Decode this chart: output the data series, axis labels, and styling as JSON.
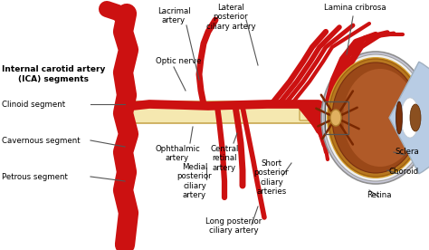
{
  "bg": "#ffffff",
  "red": "#cc1111",
  "dark_red": "#990000",
  "nerve_fill": "#f5e8b0",
  "nerve_edge": "#c8a850",
  "eye_outer": "#c8c8d8",
  "eye_white": "#e0e4ee",
  "eye_choroid_outer": "#d4a030",
  "eye_choroid_inner": "#b87820",
  "eye_retina": "#9a4818",
  "eye_brown": "#8b3a10",
  "eye_cornea": "#b8cce4",
  "eye_lens_white": "#dde8f0",
  "eye_iris": "#7a3008",
  "line_col": "#555555",
  "lc": [
    [
      "Internal carotid artery\n(ICA) segments",
      2,
      82,
      "left",
      "center",
      true,
      6.5
    ],
    [
      "Clinoid segment",
      2,
      115,
      "left",
      "center",
      false,
      6.2
    ],
    [
      "Cavernous segment",
      2,
      155,
      "left",
      "center",
      false,
      6.2
    ],
    [
      "Petrous segment",
      2,
      195,
      "left",
      "center",
      false,
      6.2
    ],
    [
      "Optic nerve",
      172,
      68,
      "left",
      "center",
      false,
      6.2
    ],
    [
      "Ophthalmic\nartery",
      196,
      160,
      "center",
      "top",
      false,
      6.2
    ],
    [
      "Central\nretinal\nartery",
      248,
      160,
      "center",
      "top",
      false,
      6.2
    ],
    [
      "Lacrimal\nartery",
      192,
      8,
      "center",
      "top",
      false,
      6.2
    ],
    [
      "Lateral\nposterior\nciliary artery",
      255,
      4,
      "center",
      "top",
      false,
      6.2
    ],
    [
      "Lamina cribrosa",
      358,
      4,
      "left",
      "top",
      false,
      6.2
    ],
    [
      "Medial\nposterior\nciliary\nartery",
      215,
      180,
      "center",
      "top",
      false,
      6.2
    ],
    [
      "Short\nposterior\nciliary\narteries",
      300,
      176,
      "center",
      "top",
      false,
      6.2
    ],
    [
      "Long posterior\nciliary artery",
      258,
      240,
      "center",
      "top",
      false,
      6.2
    ],
    [
      "Sclera",
      436,
      168,
      "left",
      "center",
      false,
      6.2
    ],
    [
      "Choroid",
      430,
      190,
      "left",
      "center",
      false,
      6.2
    ],
    [
      "Retina",
      405,
      215,
      "left",
      "center",
      false,
      6.2
    ]
  ],
  "anno_lines": [
    [
      100,
      115,
      138,
      115
    ],
    [
      100,
      155,
      138,
      162
    ],
    [
      100,
      195,
      138,
      200
    ],
    [
      192,
      74,
      205,
      100
    ],
    [
      210,
      158,
      213,
      140
    ],
    [
      258,
      158,
      262,
      147
    ],
    [
      206,
      28,
      220,
      88
    ],
    [
      272,
      22,
      285,
      72
    ],
    [
      390,
      18,
      383,
      60
    ],
    [
      228,
      198,
      228,
      185
    ],
    [
      312,
      194,
      322,
      180
    ],
    [
      278,
      248,
      285,
      228
    ],
    [
      447,
      171,
      435,
      168
    ],
    [
      440,
      192,
      428,
      188
    ],
    [
      418,
      217,
      408,
      210
    ]
  ]
}
